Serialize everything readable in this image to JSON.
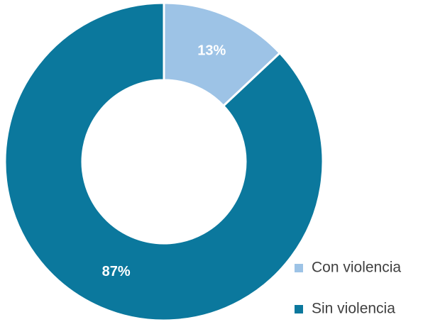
{
  "chart_data": {
    "type": "donut",
    "categories": [
      "Con violencia",
      "Sin violencia"
    ],
    "values": [
      13,
      87
    ],
    "value_labels": [
      "13%",
      "87%"
    ],
    "colors": [
      "#9dc3e6",
      "#0b789d"
    ],
    "legend": "bottom-right"
  }
}
